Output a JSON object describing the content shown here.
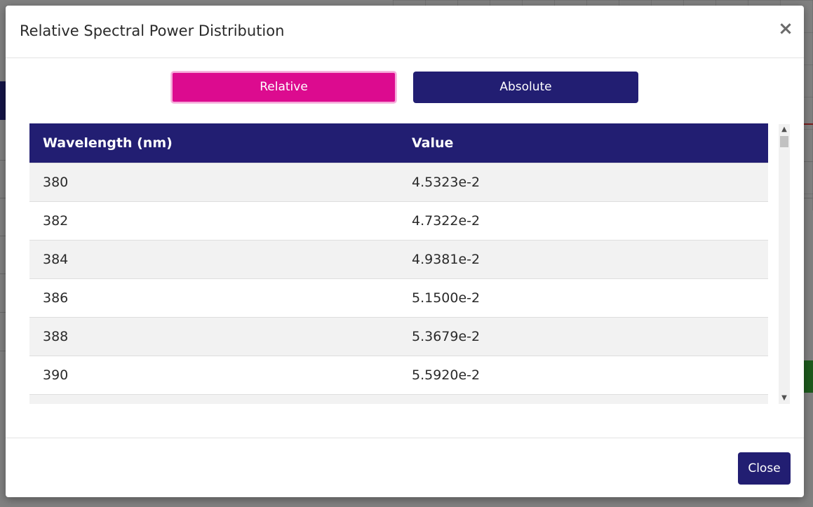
{
  "modal": {
    "title": "Relative Spectral Power Distribution",
    "close_symbol": "×",
    "close_button_label": "Close"
  },
  "toggle": {
    "relative_label": "Relative",
    "absolute_label": "Absolute",
    "selected": "Relative"
  },
  "table": {
    "headers": [
      "Wavelength (nm)",
      "Value"
    ],
    "rows": [
      {
        "wavelength": "380",
        "value": "4.5323e-2"
      },
      {
        "wavelength": "382",
        "value": "4.7322e-2"
      },
      {
        "wavelength": "384",
        "value": "4.9381e-2"
      },
      {
        "wavelength": "386",
        "value": "5.1500e-2"
      },
      {
        "wavelength": "388",
        "value": "5.3679e-2"
      },
      {
        "wavelength": "390",
        "value": "5.5920e-2"
      }
    ]
  },
  "scrollbar": {
    "up_icon": "▲",
    "down_icon": "▼"
  },
  "colors": {
    "accent_pink": "#dc0b8f",
    "primary_navy": "#221e72"
  }
}
